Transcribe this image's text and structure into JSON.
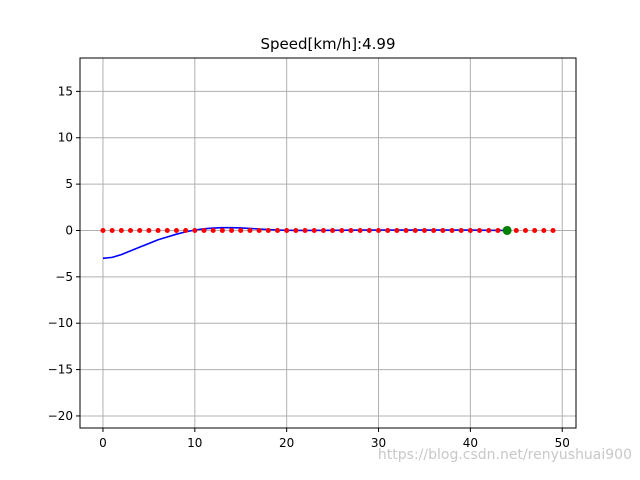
{
  "chart_data": {
    "type": "line",
    "title": "Speed[km/h]:4.99",
    "xlabel": "",
    "ylabel": "",
    "xlim": [
      -2.5,
      51.5
    ],
    "ylim": [
      -21.3,
      18.6
    ],
    "xticks": [
      0,
      10,
      20,
      30,
      40,
      50
    ],
    "yticks": [
      15,
      10,
      5,
      0,
      -5,
      -10,
      -15,
      -20
    ],
    "grid": true,
    "series": [
      {
        "kind": "line",
        "color": "#0000ff",
        "x": [
          0,
          1,
          2,
          3,
          4,
          5,
          6,
          7,
          8,
          9,
          10,
          11,
          12,
          13,
          14,
          15,
          16,
          17,
          18,
          19,
          20,
          22,
          25,
          28,
          31,
          34,
          37,
          40,
          42,
          44
        ],
        "y": [
          -3.0,
          -2.9,
          -2.6,
          -2.2,
          -1.8,
          -1.4,
          -1.0,
          -0.7,
          -0.4,
          -0.15,
          0.05,
          0.18,
          0.26,
          0.3,
          0.3,
          0.27,
          0.22,
          0.16,
          0.1,
          0.05,
          0.02,
          0.0,
          0.02,
          0.04,
          0.05,
          0.05,
          0.05,
          0.04,
          0.02,
          0.0
        ]
      },
      {
        "kind": "dots",
        "color": "#ff0000",
        "x": [
          0,
          1,
          2,
          3,
          4,
          5,
          6,
          7,
          8,
          9,
          10,
          11,
          12,
          13,
          14,
          15,
          16,
          17,
          18,
          19,
          20,
          21,
          22,
          23,
          24,
          25,
          26,
          27,
          28,
          29,
          30,
          31,
          32,
          33,
          34,
          35,
          36,
          37,
          38,
          39,
          40,
          41,
          42,
          43,
          44,
          45,
          46,
          47,
          48,
          49
        ],
        "y": [
          0,
          0,
          0,
          0,
          0,
          0,
          0,
          0,
          0,
          0,
          0,
          0,
          0,
          0,
          0,
          0,
          0,
          0,
          0,
          0,
          0,
          0,
          0,
          0,
          0,
          0,
          0,
          0,
          0,
          0,
          0,
          0,
          0,
          0,
          0,
          0,
          0,
          0,
          0,
          0,
          0,
          0,
          0,
          0,
          0,
          0,
          0,
          0,
          0,
          0
        ]
      },
      {
        "kind": "marker",
        "color": "#008000",
        "x": [
          44
        ],
        "y": [
          0
        ]
      }
    ]
  },
  "watermark": "https://blog.csdn.net/renyushuai900"
}
